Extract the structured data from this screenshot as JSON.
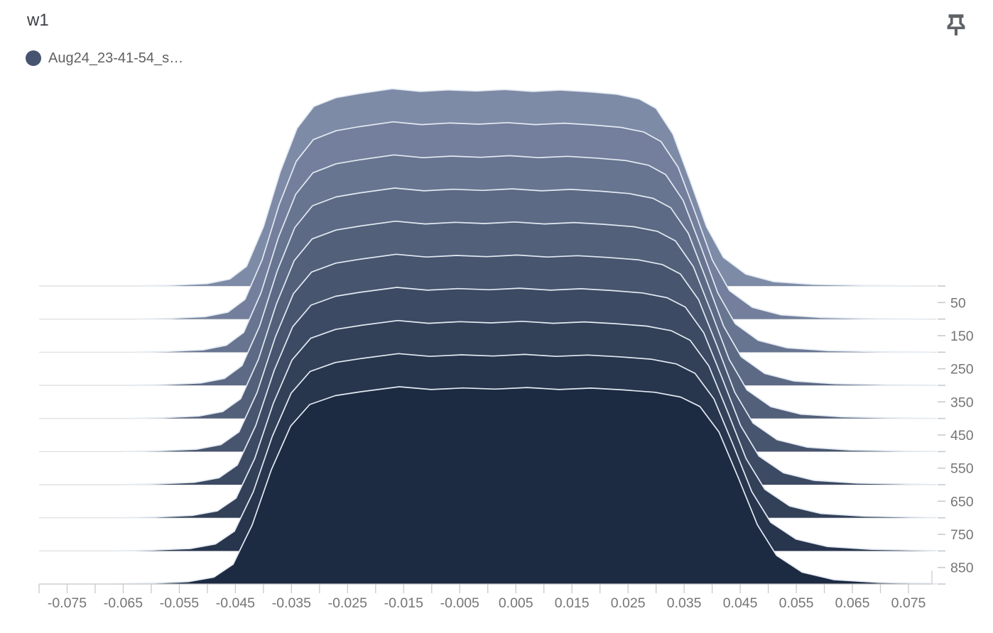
{
  "ui": {
    "title": "w1",
    "legend": {
      "label": "Aug24_23-41-54_s…",
      "dot_color": "#465470"
    },
    "pin_icon": "push-pin",
    "icon_color": "#5f6368",
    "background": "#ffffff"
  },
  "chart_data": {
    "type": "area",
    "subtype": "ridgeline-histogram-offset",
    "title": "w1",
    "series": [
      {
        "name": "Aug24_23-41-54_s…",
        "steps": [
          0,
          100,
          200,
          300,
          400,
          500,
          600,
          700,
          800,
          900
        ]
      }
    ],
    "x_axis": {
      "min": -0.08,
      "max": 0.08,
      "minor_tick_step": 0.005,
      "tick_label_values": [
        -0.075,
        -0.065,
        -0.055,
        -0.045,
        -0.035,
        -0.025,
        -0.015,
        -0.005,
        0.005,
        0.015,
        0.025,
        0.035,
        0.045,
        0.055,
        0.065,
        0.075
      ],
      "tick_labels": [
        "-0.075",
        "-0.065",
        "-0.055",
        "-0.045",
        "-0.035",
        "-0.025",
        "-0.015",
        "-0.005",
        "0.005",
        "0.015",
        "0.025",
        "0.035",
        "0.045",
        "0.055",
        "0.065",
        "0.075"
      ]
    },
    "step_axis": {
      "min": 0,
      "max": 900,
      "minor_tick_step": 50,
      "gridline_steps": [
        0,
        100,
        200,
        300,
        400,
        500,
        600,
        700,
        800,
        900
      ],
      "tick_label_values": [
        50,
        150,
        250,
        350,
        450,
        550,
        650,
        750,
        850
      ],
      "tick_labels": [
        "50",
        "150",
        "250",
        "350",
        "450",
        "550",
        "650",
        "750",
        "850"
      ]
    },
    "histogram_shape": {
      "comment": "normalized silhouette of each histogram slice: [weight_value, normalized_count]",
      "points": [
        [
          -0.062,
          0.0
        ],
        [
          -0.056,
          0.004
        ],
        [
          -0.05,
          0.012
        ],
        [
          -0.046,
          0.035
        ],
        [
          -0.043,
          0.1
        ],
        [
          -0.04,
          0.3
        ],
        [
          -0.037,
          0.58
        ],
        [
          -0.034,
          0.8
        ],
        [
          -0.031,
          0.91
        ],
        [
          -0.027,
          0.955
        ],
        [
          -0.023,
          0.975
        ],
        [
          -0.017,
          1.0
        ],
        [
          -0.012,
          0.986
        ],
        [
          -0.007,
          0.994
        ],
        [
          -0.002,
          0.988
        ],
        [
          0.003,
          0.996
        ],
        [
          0.008,
          0.986
        ],
        [
          0.013,
          0.993
        ],
        [
          0.018,
          0.984
        ],
        [
          0.023,
          0.972
        ],
        [
          0.027,
          0.948
        ],
        [
          0.03,
          0.9
        ],
        [
          0.033,
          0.77
        ],
        [
          0.036,
          0.54
        ],
        [
          0.039,
          0.3
        ],
        [
          0.042,
          0.145
        ],
        [
          0.046,
          0.06
        ],
        [
          0.051,
          0.022
        ],
        [
          0.058,
          0.008
        ],
        [
          0.068,
          0.002
        ],
        [
          0.076,
          0.0
        ]
      ],
      "width_scale_per_step": [
        1.0,
        1.016,
        1.031,
        1.047,
        1.062,
        1.078,
        1.094,
        1.109,
        1.125,
        1.14
      ],
      "x_shift_per_step": [
        0.0,
        0.0004,
        0.0008,
        0.0012,
        0.0016,
        0.002,
        0.0024,
        0.0028,
        0.0032,
        0.0036
      ]
    },
    "colors_per_step": [
      "#7e8ba7",
      "#737f9c",
      "#687591",
      "#5d6a85",
      "#52607a",
      "#48556f",
      "#3d4a64",
      "#324058",
      "#27354d",
      "#1c2a42"
    ],
    "ridge_stroke_color": "#e3eaf2",
    "gridline_color": "#dbdbdb",
    "axis_line_color": "#cccccc",
    "tick_color": "#c9c9c9",
    "tick_label_color": "#757575",
    "grid": true,
    "legend_position": "top-left"
  }
}
